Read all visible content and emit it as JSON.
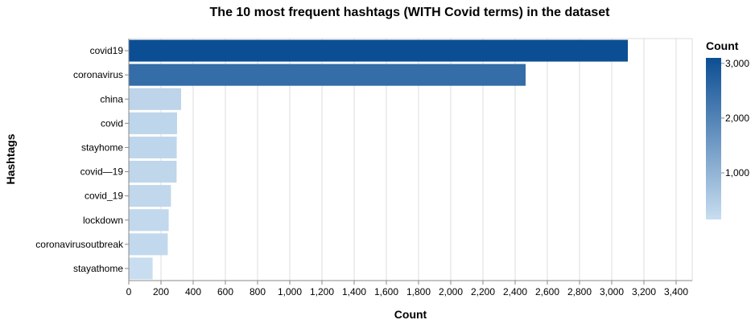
{
  "chart_data": {
    "type": "bar",
    "orientation": "horizontal",
    "title": "The 10 most frequent hashtags (WITH Covid terms) in the dataset",
    "xlabel": "Count",
    "ylabel": "Hashtags",
    "xlim": [
      0,
      3500
    ],
    "xticks": [
      0,
      200,
      400,
      600,
      800,
      1000,
      1200,
      1400,
      1600,
      1800,
      2000,
      2200,
      2400,
      2600,
      2800,
      3000,
      3200,
      3400
    ],
    "xtick_labels": [
      "0",
      "200",
      "400",
      "600",
      "800",
      "1,000",
      "1,200",
      "1,400",
      "1,600",
      "1,800",
      "2,000",
      "2,200",
      "2,400",
      "2,600",
      "2,800",
      "3,000",
      "3,200",
      "3,400"
    ],
    "categories": [
      "covid19",
      "coronavirus",
      "china",
      "covid",
      "stayhome",
      "covid—19",
      "covid_19",
      "lockdown",
      "coronavirusoutbreak",
      "stayathome"
    ],
    "values": [
      3100,
      2465,
      325,
      300,
      298,
      297,
      262,
      248,
      242,
      148
    ],
    "grid": true,
    "legend": {
      "title": "Count",
      "type": "gradient",
      "position": "right",
      "domain": [
        148,
        3100
      ],
      "ticks": [
        1000,
        2000,
        3000
      ],
      "tick_labels": [
        "1,000",
        "2,000",
        "3,000"
      ],
      "color_low": "#c8ddf0",
      "color_high": "#0c4e93"
    }
  }
}
